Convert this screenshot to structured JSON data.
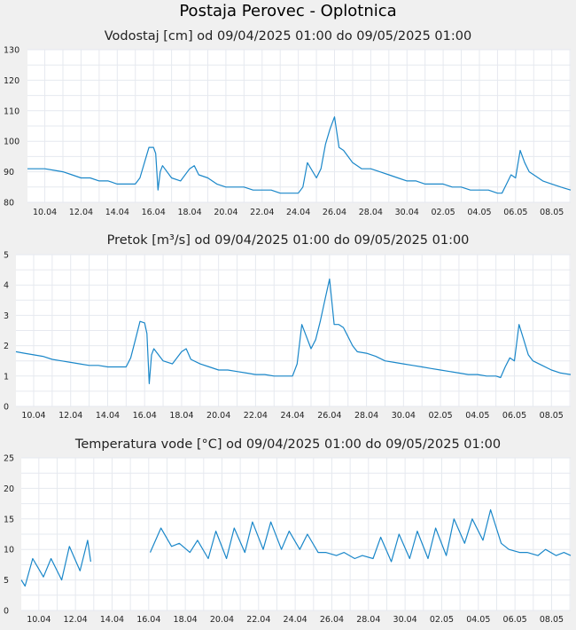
{
  "title": "Postaja Perovec - Oplotnica",
  "colors": {
    "series": "#1a87c9",
    "background": "#f0f0f0",
    "plot_background": "#ffffff",
    "grid": "#e6e9ef"
  },
  "chart_data": [
    {
      "type": "line",
      "title": "Vodostaj [cm] od 09/04/2025 01:00 do 09/05/2025 01:00",
      "x_ticks": [
        "10.04",
        "12.04",
        "14.04",
        "16.04",
        "18.04",
        "20.04",
        "22.04",
        "24.04",
        "26.04",
        "28.04",
        "30.04",
        "02.05",
        "04.05",
        "06.05",
        "08.05"
      ],
      "y_ticks": [
        "80",
        "90",
        "100",
        "110",
        "120",
        "130"
      ],
      "ylim": [
        80,
        130
      ],
      "xlim": [
        "2025-04-09 01:00",
        "2025-05-09 01:00"
      ],
      "grid": true,
      "series": [
        {
          "x": [
            "2025-04-09 01:00",
            "2025-04-09 12:00",
            "2025-04-10 00:00",
            "2025-04-10 12:00",
            "2025-04-11 00:00",
            "2025-04-11 12:00",
            "2025-04-12 00:00",
            "2025-04-12 12:00",
            "2025-04-13 00:00",
            "2025-04-13 12:00",
            "2025-04-14 00:00",
            "2025-04-14 12:00",
            "2025-04-15 00:00",
            "2025-04-15 06:00",
            "2025-04-15 12:00",
            "2025-04-15 18:00",
            "2025-04-16 00:00",
            "2025-04-16 03:00",
            "2025-04-16 06:00",
            "2025-04-16 09:00",
            "2025-04-16 12:00",
            "2025-04-17 00:00",
            "2025-04-17 12:00",
            "2025-04-18 00:00",
            "2025-04-18 06:00",
            "2025-04-18 12:00",
            "2025-04-19 00:00",
            "2025-04-19 12:00",
            "2025-04-20 00:00",
            "2025-04-20 12:00",
            "2025-04-21 00:00",
            "2025-04-21 12:00",
            "2025-04-22 00:00",
            "2025-04-22 12:00",
            "2025-04-23 00:00",
            "2025-04-23 12:00",
            "2025-04-24 00:00",
            "2025-04-24 06:00",
            "2025-04-24 12:00",
            "2025-04-25 00:00",
            "2025-04-25 06:00",
            "2025-04-25 12:00",
            "2025-04-25 18:00",
            "2025-04-26 00:00",
            "2025-04-26 06:00",
            "2025-04-26 12:00",
            "2025-04-26 18:00",
            "2025-04-27 00:00",
            "2025-04-27 06:00",
            "2025-04-27 12:00",
            "2025-04-28 00:00",
            "2025-04-28 12:00",
            "2025-04-29 00:00",
            "2025-04-29 12:00",
            "2025-04-30 00:00",
            "2025-04-30 12:00",
            "2025-05-01 00:00",
            "2025-05-01 12:00",
            "2025-05-02 00:00",
            "2025-05-02 12:00",
            "2025-05-03 00:00",
            "2025-05-03 12:00",
            "2025-05-04 00:00",
            "2025-05-04 12:00",
            "2025-05-05 00:00",
            "2025-05-05 06:00",
            "2025-05-05 12:00",
            "2025-05-05 18:00",
            "2025-05-06 00:00",
            "2025-05-06 06:00",
            "2025-05-06 12:00",
            "2025-05-06 18:00",
            "2025-05-07 00:00",
            "2025-05-07 12:00",
            "2025-05-08 00:00",
            "2025-05-08 12:00",
            "2025-05-09 01:00"
          ],
          "values": [
            91,
            91,
            91,
            90.5,
            90,
            89,
            88,
            88,
            87,
            87,
            86,
            86,
            86,
            88,
            93,
            98,
            98,
            96,
            84,
            90,
            92,
            88,
            87,
            91,
            92,
            89,
            88,
            86,
            85,
            85,
            85,
            84,
            84,
            84,
            83,
            83,
            83,
            85,
            93,
            88,
            91,
            99,
            104,
            108,
            98,
            97,
            95,
            93,
            92,
            91,
            91,
            90,
            89,
            88,
            87,
            87,
            86,
            86,
            86,
            85,
            85,
            84,
            84,
            84,
            83,
            83,
            86,
            89,
            88,
            97,
            93,
            90,
            89,
            87,
            86,
            85,
            84
          ]
        }
      ]
    },
    {
      "type": "line",
      "title": "Pretok [m³/s] od 09/04/2025 01:00 do 09/05/2025 01:00",
      "x_ticks": [
        "10.04",
        "12.04",
        "14.04",
        "16.04",
        "18.04",
        "20.04",
        "22.04",
        "24.04",
        "26.04",
        "28.04",
        "30.04",
        "02.05",
        "04.05",
        "06.05",
        "08.05"
      ],
      "y_ticks": [
        "0",
        "1",
        "2",
        "3",
        "4",
        "5"
      ],
      "ylim": [
        0,
        5
      ],
      "xlim": [
        "2025-04-09 01:00",
        "2025-05-09 01:00"
      ],
      "grid": true,
      "series": [
        {
          "x": [
            "2025-04-09 01:00",
            "2025-04-09 12:00",
            "2025-04-10 00:00",
            "2025-04-10 12:00",
            "2025-04-11 00:00",
            "2025-04-11 12:00",
            "2025-04-12 00:00",
            "2025-04-12 12:00",
            "2025-04-13 00:00",
            "2025-04-13 12:00",
            "2025-04-14 00:00",
            "2025-04-14 12:00",
            "2025-04-15 00:00",
            "2025-04-15 06:00",
            "2025-04-15 12:00",
            "2025-04-15 18:00",
            "2025-04-16 00:00",
            "2025-04-16 03:00",
            "2025-04-16 06:00",
            "2025-04-16 09:00",
            "2025-04-16 12:00",
            "2025-04-17 00:00",
            "2025-04-17 12:00",
            "2025-04-18 00:00",
            "2025-04-18 06:00",
            "2025-04-18 12:00",
            "2025-04-19 00:00",
            "2025-04-19 12:00",
            "2025-04-20 00:00",
            "2025-04-20 12:00",
            "2025-04-21 00:00",
            "2025-04-21 12:00",
            "2025-04-22 00:00",
            "2025-04-22 12:00",
            "2025-04-23 00:00",
            "2025-04-23 12:00",
            "2025-04-24 00:00",
            "2025-04-24 06:00",
            "2025-04-24 12:00",
            "2025-04-25 00:00",
            "2025-04-25 06:00",
            "2025-04-25 12:00",
            "2025-04-25 18:00",
            "2025-04-26 00:00",
            "2025-04-26 06:00",
            "2025-04-26 12:00",
            "2025-04-26 18:00",
            "2025-04-27 00:00",
            "2025-04-27 06:00",
            "2025-04-27 12:00",
            "2025-04-28 00:00",
            "2025-04-28 12:00",
            "2025-04-29 00:00",
            "2025-04-29 12:00",
            "2025-04-30 00:00",
            "2025-04-30 12:00",
            "2025-05-01 00:00",
            "2025-05-01 12:00",
            "2025-05-02 00:00",
            "2025-05-02 12:00",
            "2025-05-03 00:00",
            "2025-05-03 12:00",
            "2025-05-04 00:00",
            "2025-05-04 12:00",
            "2025-05-05 00:00",
            "2025-05-05 06:00",
            "2025-05-05 12:00",
            "2025-05-05 18:00",
            "2025-05-06 00:00",
            "2025-05-06 06:00",
            "2025-05-06 12:00",
            "2025-05-06 18:00",
            "2025-05-07 00:00",
            "2025-05-07 12:00",
            "2025-05-08 00:00",
            "2025-05-08 12:00",
            "2025-05-09 01:00"
          ],
          "values": [
            1.8,
            1.75,
            1.7,
            1.65,
            1.55,
            1.5,
            1.45,
            1.4,
            1.35,
            1.35,
            1.3,
            1.3,
            1.3,
            1.6,
            2.2,
            2.8,
            2.75,
            2.4,
            0.75,
            1.7,
            1.9,
            1.5,
            1.4,
            1.8,
            1.9,
            1.55,
            1.4,
            1.3,
            1.2,
            1.2,
            1.15,
            1.1,
            1.05,
            1.05,
            1.0,
            1.0,
            1.0,
            1.4,
            2.7,
            1.9,
            2.2,
            2.8,
            3.5,
            4.2,
            2.7,
            2.7,
            2.6,
            2.3,
            2.0,
            1.8,
            1.75,
            1.65,
            1.5,
            1.45,
            1.4,
            1.35,
            1.3,
            1.25,
            1.2,
            1.15,
            1.1,
            1.05,
            1.05,
            1.0,
            1.0,
            0.95,
            1.3,
            1.6,
            1.5,
            2.7,
            2.2,
            1.7,
            1.5,
            1.35,
            1.2,
            1.1,
            1.05
          ]
        }
      ]
    },
    {
      "type": "line",
      "title": "Temperatura vode [°C] od 09/04/2025 01:00 do 09/05/2025 01:00",
      "x_ticks": [
        "10.04",
        "12.04",
        "14.04",
        "16.04",
        "18.04",
        "20.04",
        "22.04",
        "24.04",
        "26.04",
        "28.04",
        "30.04",
        "02.05",
        "04.05",
        "06.05",
        "08.05"
      ],
      "y_ticks": [
        "0",
        "5",
        "10",
        "15",
        "20",
        "25"
      ],
      "ylim": [
        0,
        25
      ],
      "xlim": [
        "2025-04-09 01:00",
        "2025-05-09 01:00"
      ],
      "grid": true,
      "series": [
        {
          "x": [
            "2025-04-09 01:00",
            "2025-04-09 06:00",
            "2025-04-09 16:00",
            "2025-04-10 06:00",
            "2025-04-10 16:00",
            "2025-04-11 06:00",
            "2025-04-11 16:00",
            "2025-04-12 06:00",
            "2025-04-12 16:00",
            "2025-04-12 20:00",
            null,
            "2025-04-16 02:00",
            "2025-04-16 16:00",
            "2025-04-17 06:00",
            "2025-04-17 16:00",
            "2025-04-18 06:00",
            "2025-04-18 16:00",
            "2025-04-19 06:00",
            "2025-04-19 16:00",
            "2025-04-20 06:00",
            "2025-04-20 16:00",
            "2025-04-21 06:00",
            "2025-04-21 16:00",
            "2025-04-22 06:00",
            "2025-04-22 16:00",
            "2025-04-23 06:00",
            "2025-04-23 16:00",
            "2025-04-24 06:00",
            "2025-04-24 16:00",
            "2025-04-25 06:00",
            "2025-04-25 16:00",
            "2025-04-26 06:00",
            "2025-04-26 16:00",
            "2025-04-27 06:00",
            "2025-04-27 16:00",
            "2025-04-28 06:00",
            "2025-04-28 16:00",
            "2025-04-29 06:00",
            "2025-04-29 16:00",
            "2025-04-30 06:00",
            "2025-04-30 16:00",
            "2025-05-01 06:00",
            "2025-05-01 16:00",
            "2025-05-02 06:00",
            "2025-05-02 16:00",
            "2025-05-03 06:00",
            "2025-05-03 16:00",
            "2025-05-04 06:00",
            "2025-05-04 16:00",
            "2025-05-05 06:00",
            "2025-05-05 16:00",
            "2025-05-06 06:00",
            "2025-05-06 16:00",
            "2025-05-07 06:00",
            "2025-05-07 16:00",
            "2025-05-08 06:00",
            "2025-05-08 16:00",
            "2025-05-09 01:00"
          ],
          "values": [
            5,
            4,
            8.5,
            5.5,
            8.5,
            5,
            10.5,
            6.5,
            11.5,
            8,
            null,
            9.5,
            13.5,
            10.5,
            11,
            9.5,
            11.5,
            8.5,
            13,
            8.5,
            13.5,
            9.5,
            14.5,
            10,
            14.5,
            10,
            13,
            10,
            12.5,
            9.5,
            9.5,
            9,
            9.5,
            8.5,
            9,
            8.5,
            12,
            8,
            12.5,
            8.5,
            13,
            8.5,
            13.5,
            9,
            15,
            11,
            15,
            11.5,
            16.5,
            11,
            10,
            9.5,
            9.5,
            9,
            10,
            9,
            9.5,
            9
          ]
        }
      ]
    }
  ]
}
